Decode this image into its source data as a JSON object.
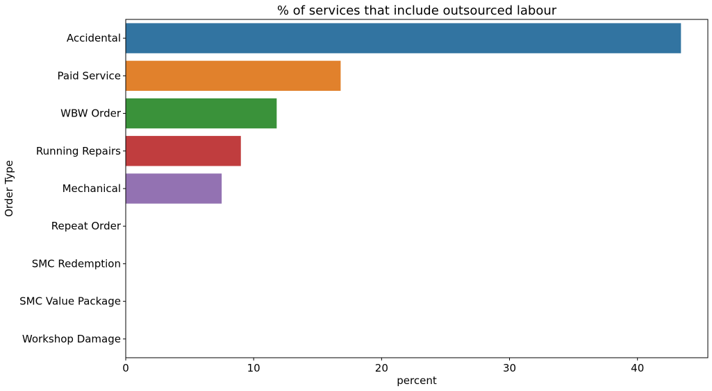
{
  "chart_data": {
    "type": "bar",
    "orientation": "horizontal",
    "title": "% of services that include outsourced labour",
    "xlabel": "percent",
    "ylabel": "Order Type",
    "categories": [
      "Accidental",
      "Paid Service",
      "WBW Order",
      "Running Repairs",
      "Mechanical",
      "Repeat Order",
      "SMC Redemption",
      "SMC Value Package",
      "Workshop Damage"
    ],
    "values": [
      43.4,
      16.8,
      11.8,
      9.0,
      7.5,
      0,
      0,
      0,
      0
    ],
    "colors": [
      "#3274a1",
      "#e1812c",
      "#3a923a",
      "#c03d3e",
      "#9372b2",
      "#845b53",
      "#d684bd",
      "#7f7f7f",
      "#a9aa35"
    ],
    "xlim": [
      0,
      45.5
    ],
    "xticks": [
      0,
      10,
      20,
      30,
      40
    ],
    "grid": false,
    "legend": "none"
  }
}
